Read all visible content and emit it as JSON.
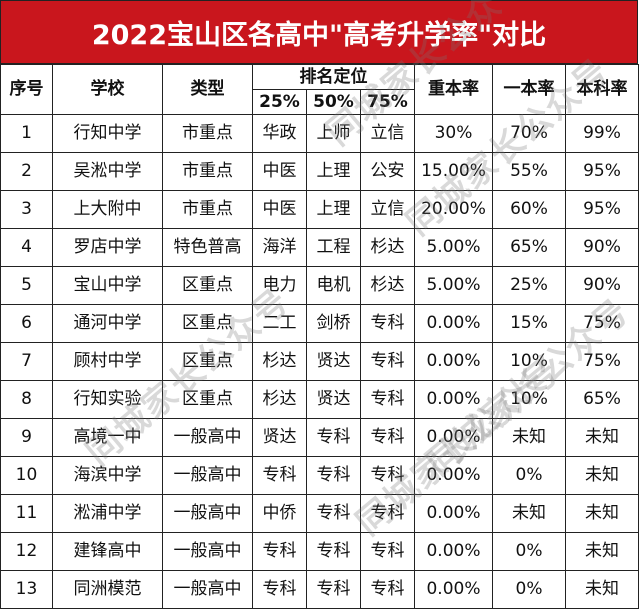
{
  "title": "2022宝山区各高中\"高考升学率\"对比",
  "headers": {
    "index": "序号",
    "school": "学校",
    "type": "类型",
    "rank_group": "排名定位",
    "rank25": "25%",
    "rank50": "50%",
    "rank75": "75%",
    "key_rate": "重本率",
    "first_rate": "一本率",
    "bachelor_rate": "本科率"
  },
  "rows": [
    {
      "index": "1",
      "school": "行知中学",
      "type": "市重点",
      "r25": "华政",
      "r50": "上师",
      "r75": "立信",
      "key": "30%",
      "first": "70%",
      "bachelor": "99%"
    },
    {
      "index": "2",
      "school": "吴淞中学",
      "type": "市重点",
      "r25": "中医",
      "r50": "上理",
      "r75": "公安",
      "key": "15.00%",
      "first": "55%",
      "bachelor": "95%"
    },
    {
      "index": "3",
      "school": "上大附中",
      "type": "市重点",
      "r25": "中医",
      "r50": "上理",
      "r75": "立信",
      "key": "20.00%",
      "first": "60%",
      "bachelor": "95%"
    },
    {
      "index": "4",
      "school": "罗店中学",
      "type": "特色普高",
      "r25": "海洋",
      "r50": "工程",
      "r75": "杉达",
      "key": "5.00%",
      "first": "65%",
      "bachelor": "90%"
    },
    {
      "index": "5",
      "school": "宝山中学",
      "type": "区重点",
      "r25": "电力",
      "r50": "电机",
      "r75": "杉达",
      "key": "5.00%",
      "first": "25%",
      "bachelor": "90%"
    },
    {
      "index": "6",
      "school": "通河中学",
      "type": "区重点",
      "r25": "二工",
      "r50": "剑桥",
      "r75": "专科",
      "key": "0.00%",
      "first": "15%",
      "bachelor": "75%"
    },
    {
      "index": "7",
      "school": "顾村中学",
      "type": "区重点",
      "r25": "杉达",
      "r50": "贤达",
      "r75": "专科",
      "key": "0.00%",
      "first": "10%",
      "bachelor": "75%"
    },
    {
      "index": "8",
      "school": "行知实验",
      "type": "区重点",
      "r25": "杉达",
      "r50": "贤达",
      "r75": "专科",
      "key": "0.00%",
      "first": "10%",
      "bachelor": "65%"
    },
    {
      "index": "9",
      "school": "高境一中",
      "type": "一般高中",
      "r25": "贤达",
      "r50": "专科",
      "r75": "专科",
      "key": "0.00%",
      "first": "未知",
      "bachelor": "未知"
    },
    {
      "index": "10",
      "school": "海滨中学",
      "type": "一般高中",
      "r25": "专科",
      "r50": "专科",
      "r75": "专科",
      "key": "0.00%",
      "first": "0%",
      "bachelor": "未知"
    },
    {
      "index": "11",
      "school": "淞浦中学",
      "type": "一般高中",
      "r25": "中侨",
      "r50": "专科",
      "r75": "专科",
      "key": "0.00%",
      "first": "未知",
      "bachelor": "未知"
    },
    {
      "index": "12",
      "school": "建锋高中",
      "type": "一般高中",
      "r25": "专科",
      "r50": "专科",
      "r75": "专科",
      "key": "0.00%",
      "first": "0%",
      "bachelor": "未知"
    },
    {
      "index": "13",
      "school": "同洲模范",
      "type": "一般高中",
      "r25": "专科",
      "r50": "专科",
      "r75": "专科",
      "key": "0.00%",
      "first": "0%",
      "bachelor": "未知"
    }
  ],
  "watermark": "同城家长公众号",
  "colors": {
    "title_bg": "#c9161d",
    "title_text": "#ffffff",
    "border": "#222222"
  }
}
